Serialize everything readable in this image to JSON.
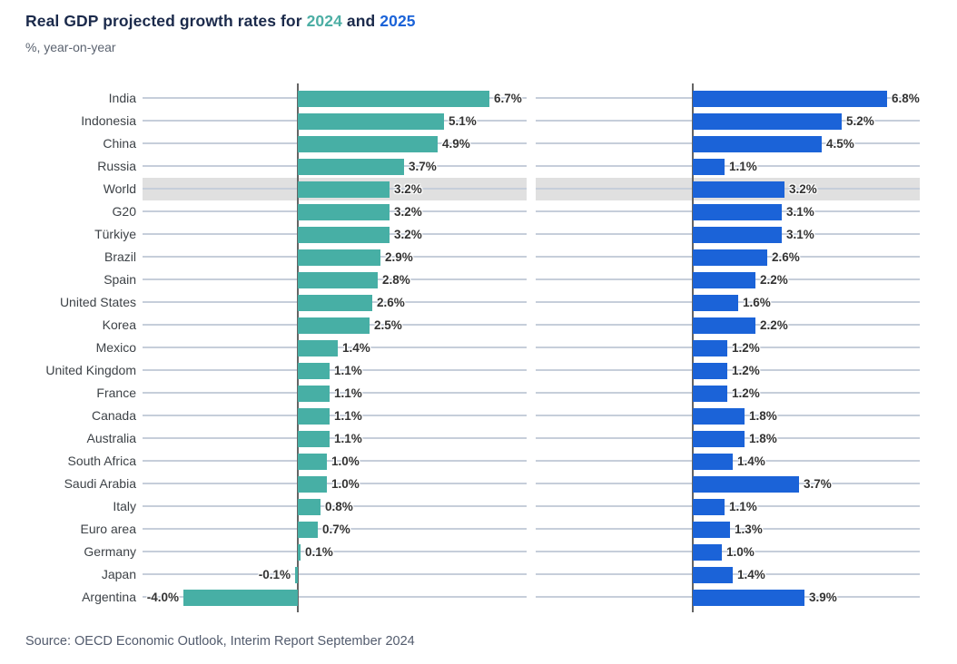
{
  "title": {
    "prefix": "Real GDP projected growth rates for ",
    "year1": "2024",
    "mid": " and ",
    "year2": "2025"
  },
  "subtitle": "%, year-on-year",
  "source": "Source: OECD Economic Outlook, Interim Report September 2024",
  "colors": {
    "teal": "#47afa5",
    "blue": "#1b63d8",
    "title_navy": "#1b2a4b",
    "highlight_band": "#e0e0e0",
    "gridline": "#c6ceda",
    "axis": "#646464"
  },
  "chart_data": {
    "type": "bar",
    "orientation": "horizontal",
    "title": "Real GDP projected growth rates for 2024 and 2025",
    "subtitle": "%, year-on-year",
    "unit": "%",
    "xlim": [
      -5.4,
      8.0
    ],
    "grid": true,
    "highlighted_category": "World",
    "categories": [
      "India",
      "Indonesia",
      "China",
      "Russia",
      "World",
      "G20",
      "Türkiye",
      "Brazil",
      "Spain",
      "United States",
      "Korea",
      "Mexico",
      "United Kingdom",
      "France",
      "Canada",
      "Australia",
      "South Africa",
      "Saudi Arabia",
      "Italy",
      "Euro area",
      "Germany",
      "Japan",
      "Argentina"
    ],
    "series": [
      {
        "name": "2024",
        "color": "#47afa5",
        "values": [
          6.7,
          5.1,
          4.9,
          3.7,
          3.2,
          3.2,
          3.2,
          2.9,
          2.8,
          2.6,
          2.5,
          1.4,
          1.1,
          1.1,
          1.1,
          1.1,
          1.0,
          1.0,
          0.8,
          0.7,
          0.1,
          -0.1,
          -4.0
        ]
      },
      {
        "name": "2025",
        "color": "#1b63d8",
        "values": [
          6.8,
          5.2,
          4.5,
          1.1,
          3.2,
          3.1,
          3.1,
          2.6,
          2.2,
          1.6,
          2.2,
          1.2,
          1.2,
          1.2,
          1.8,
          1.8,
          1.4,
          3.7,
          1.1,
          1.3,
          1.0,
          1.4,
          3.9
        ]
      }
    ]
  }
}
